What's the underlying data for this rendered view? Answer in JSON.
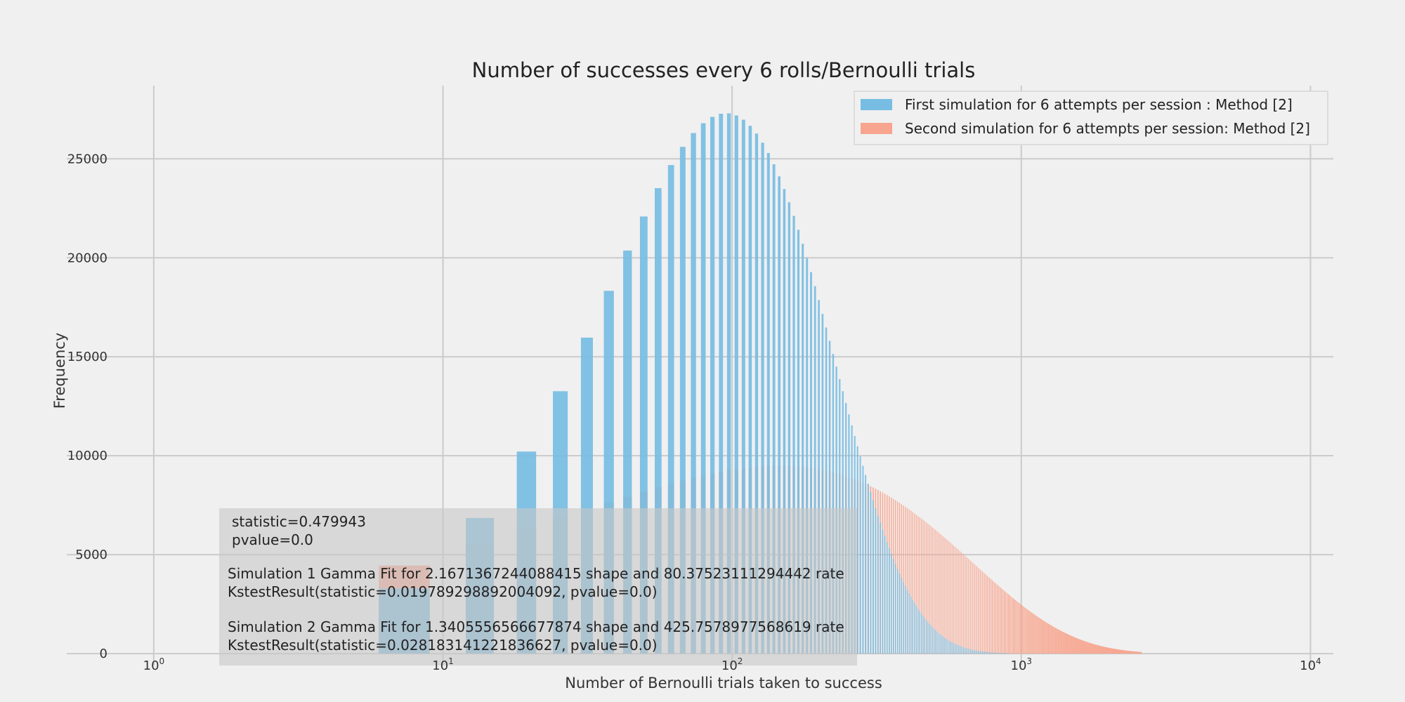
{
  "chart_data": {
    "type": "bar",
    "title": "Number of successes every 6 rolls/Bernoulli trials",
    "xlabel": "Number of Bernoulli trials taken to success",
    "ylabel": "Frequency",
    "x_scale": "log",
    "xlim": [
      0.5,
      12000
    ],
    "ylim": [
      -600,
      28700
    ],
    "x_ticks": [
      {
        "value": 1,
        "base": "10",
        "exp": "0"
      },
      {
        "value": 10,
        "base": "10",
        "exp": "1"
      },
      {
        "value": 100,
        "base": "10",
        "exp": "2"
      },
      {
        "value": 1000,
        "base": "10",
        "exp": "3"
      },
      {
        "value": 10000,
        "base": "10",
        "exp": "4"
      }
    ],
    "y_ticks": [
      {
        "value": 0,
        "label": "0"
      },
      {
        "value": 5000,
        "label": "5000"
      },
      {
        "value": 10000,
        "label": "10000"
      },
      {
        "value": 15000,
        "label": "15000"
      },
      {
        "value": 20000,
        "label": "20000"
      },
      {
        "value": 25000,
        "label": "25000"
      }
    ],
    "grid": true,
    "legend_position": "top-right",
    "series": [
      {
        "name": "First simulation for 6 attempts per session : Method [2]",
        "color": "#77bde3",
        "gamma_shape": 2.1671367244088415,
        "gamma_rate": 80.37523111294442,
        "ks": {
          "statistic": 0.019789298892004092,
          "pvalue": 0.0
        }
      },
      {
        "name": "Second simulation for 6 attempts per session: Method [2]",
        "color": "#f7a58e",
        "gamma_shape": 1.3405556566677874,
        "gamma_rate": 425.7578977568619,
        "ks": {
          "statistic": 0.02818314122183662,
          "pvalue": 0.0
        }
      }
    ],
    "annotation": {
      "lines": [
        "statistic=0.479943",
        "pvalue=0.0",
        "",
        "Simulation 1 Gamma Fit for 2.1671367244088415 shape and 80.37523111294442 rate",
        " KstestResult(statistic=0.019789298892004092, pvalue=0.0)",
        "",
        "Simulation 2 Gamma Fit for 1.3405556566677874 shape and 425.7578977568619 rate",
        " KstestResult(statistic=0.028183141221836627, pvalue=0.0)"
      ]
    }
  }
}
